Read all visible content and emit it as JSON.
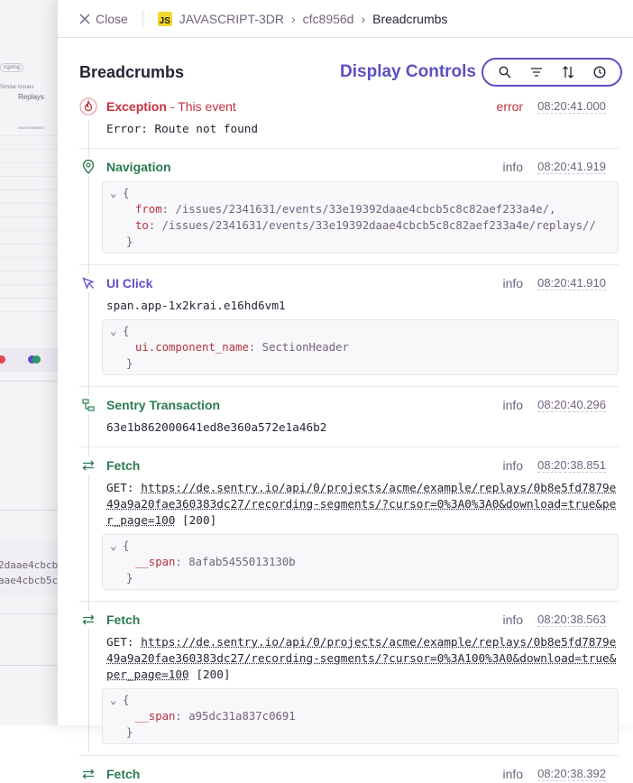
{
  "background": {
    "fragments": [
      "ngoing",
      "Similar Issues",
      "Replays",
      "ENVIRONMENT"
    ],
    "mono_lines": [
      "2daae4cbcb",
      "aae4cbcb5c"
    ]
  },
  "header": {
    "close_label": "Close",
    "project_badge": "JS",
    "breadcrumb": [
      "JAVASCRIPT-3DR",
      "cfc8956d",
      "Breadcrumbs"
    ]
  },
  "title": "Breadcrumbs",
  "display_controls": {
    "label": "Display Controls",
    "icons": [
      "search-icon",
      "filter-icon",
      "sort-icon",
      "clock-icon"
    ],
    "accent": "#5b4fc4"
  },
  "entries": [
    {
      "icon": "fire-icon",
      "title": "Exception",
      "subtitle": "- This event",
      "level": "error",
      "time": "08:20:41.000",
      "color": "#c6303e",
      "message": "Error: Route not found"
    },
    {
      "icon": "location-pin-icon",
      "title": "Navigation",
      "level": "info",
      "time": "08:20:41.919",
      "color": "#2c7a53",
      "data": [
        {
          "key": "from",
          "value": "/issues/2341631/events/33e19392daae4cbcb5c8c82aef233a4e/,"
        },
        {
          "key": "to",
          "value": "/issues/2341631/events/33e19392daae4cbcb5c8c82aef233a4e/replays//"
        }
      ]
    },
    {
      "icon": "cursor-click-icon",
      "title": "UI Click",
      "level": "info",
      "time": "08:20:41.910",
      "color": "#5e4fc8",
      "message": "span.app-1x2krai.e16hd6vm1",
      "data": [
        {
          "key": "ui.component_name",
          "value": "SectionHeader"
        }
      ]
    },
    {
      "icon": "transaction-icon",
      "title": "Sentry Transaction",
      "level": "info",
      "time": "08:20:40.296",
      "color": "#2c7a53",
      "message": "63e1b862000641ed8e360a572e1a46b2"
    },
    {
      "icon": "arrows-swap-icon",
      "title": "Fetch",
      "level": "info",
      "time": "08:20:38.851",
      "color": "#2c7a53",
      "method": "GET:",
      "url": "https://de.sentry.io/api/0/projects/acme/example/replays/0b8e5fd7879e49a9a20fae360383dc27/recording-segments/?cursor=0%3A0%3A0&download=true&per_page=100",
      "status": "[200]",
      "data": [
        {
          "key": "__span",
          "value": "8afab5455013130b"
        }
      ]
    },
    {
      "icon": "arrows-swap-icon",
      "title": "Fetch",
      "level": "info",
      "time": "08:20:38.563",
      "color": "#2c7a53",
      "method": "GET:",
      "url": "https://de.sentry.io/api/0/projects/acme/example/replays/0b8e5fd7879e49a9a20fae360383dc27/recording-segments/?cursor=0%3A100%3A0&download=true&per_page=100",
      "status": "[200]",
      "data": [
        {
          "key": "__span",
          "value": "a95dc31a837c0691"
        }
      ]
    },
    {
      "icon": "arrows-swap-icon",
      "title": "Fetch",
      "level": "info",
      "time": "08:20:38.392",
      "color": "#2c7a53"
    }
  ],
  "code": {
    "open": "{",
    "close": "}"
  }
}
